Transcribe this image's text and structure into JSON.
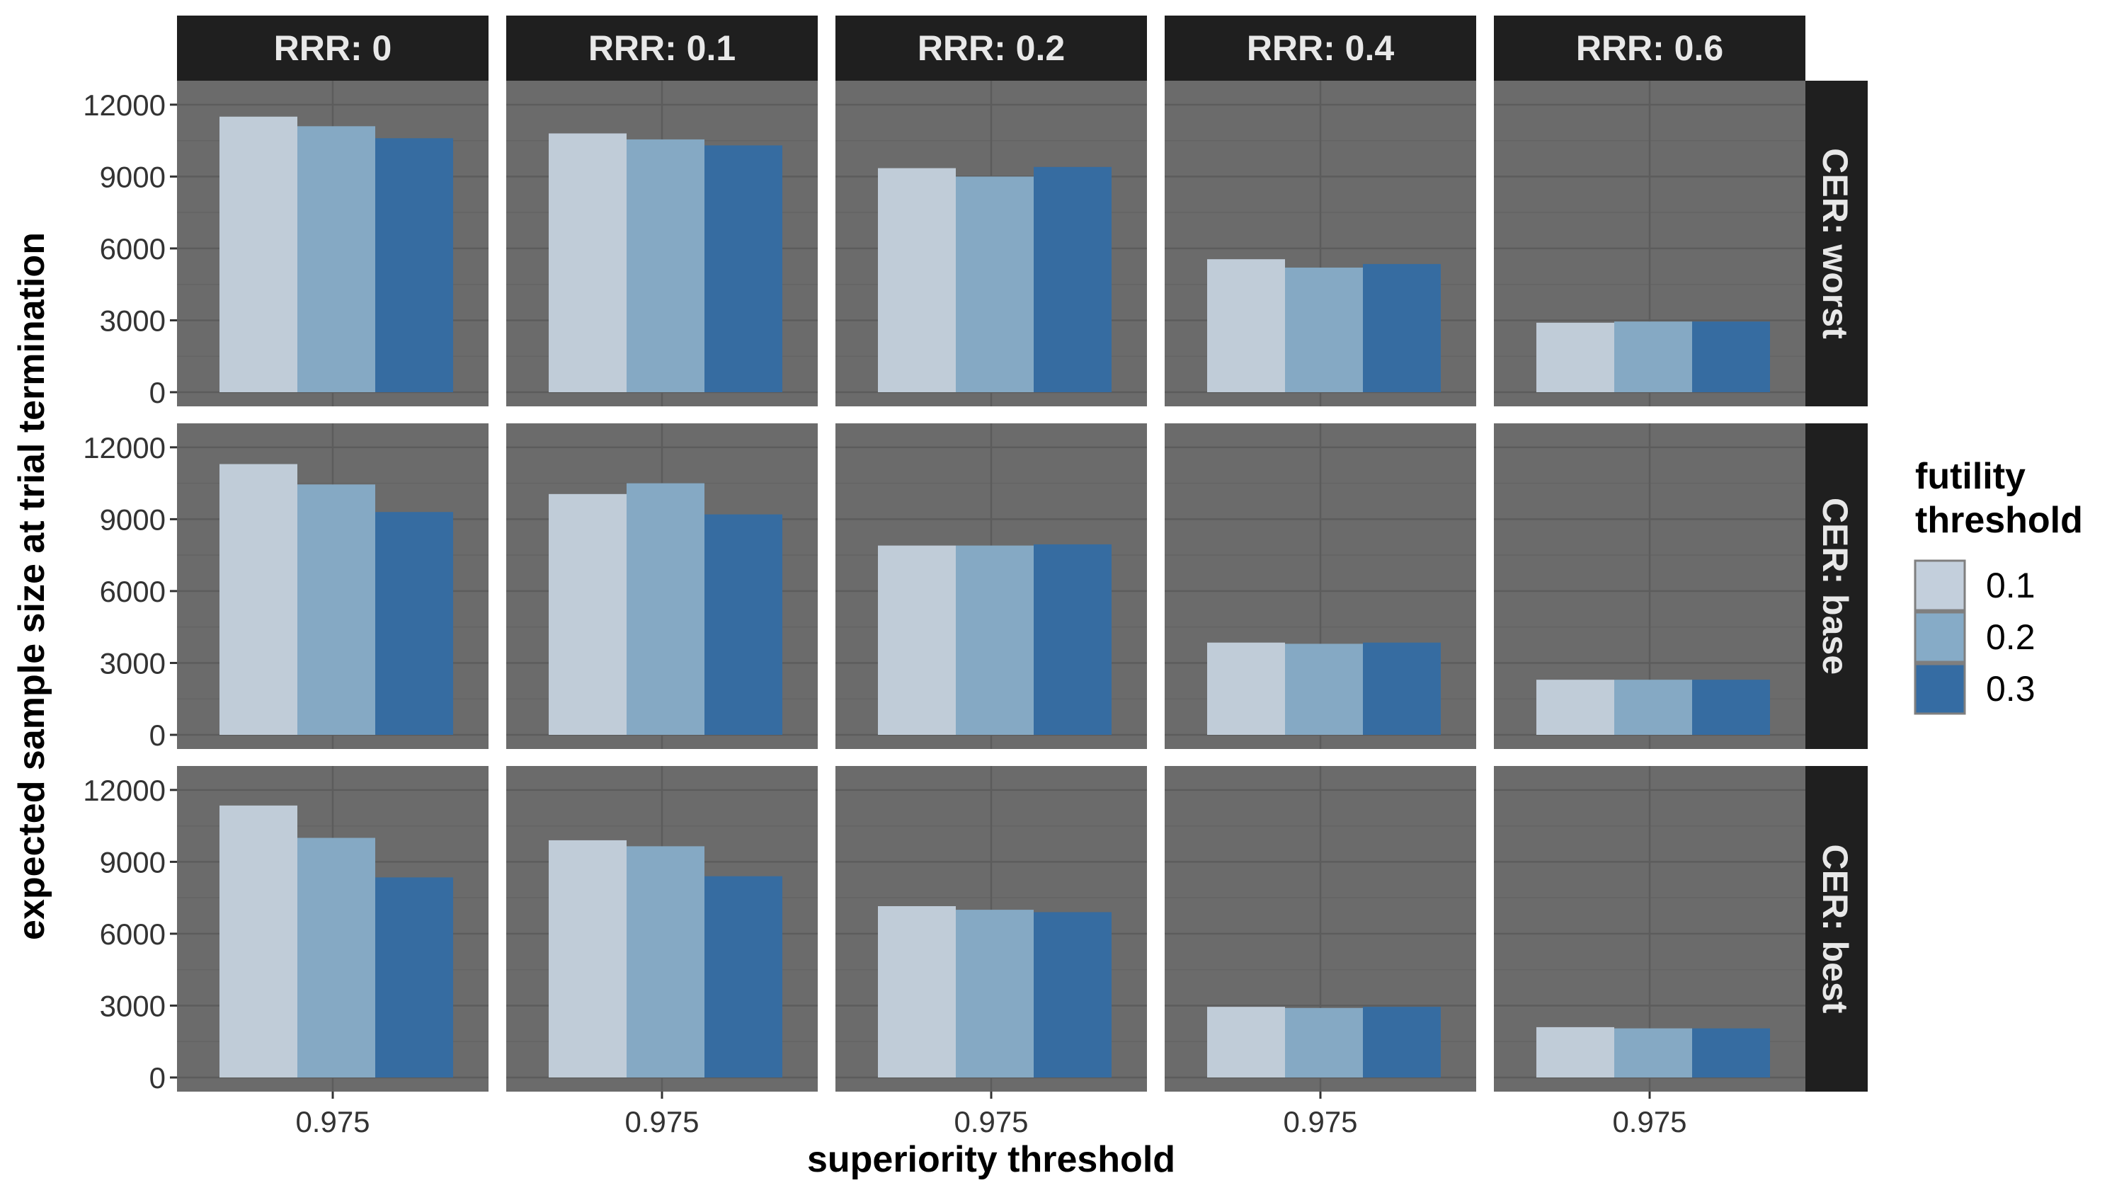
{
  "chart_data": {
    "type": "bar",
    "xlabel": "superiority threshold",
    "ylabel": "expected sample size at trial termination",
    "x_categories": [
      "0.975"
    ],
    "ylim": [
      0,
      13000
    ],
    "yticks": [
      0,
      3000,
      6000,
      9000,
      12000
    ],
    "grid": true,
    "legend": {
      "title_lines": [
        "futility",
        "threshold"
      ],
      "position": "right",
      "entries": [
        {
          "label": "0.1",
          "color": "#c3cfdc"
        },
        {
          "label": "0.2",
          "color": "#86abc7"
        },
        {
          "label": "0.3",
          "color": "#356ca3"
        }
      ]
    },
    "col_facets": [
      "RRR: 0",
      "RRR: 0.1",
      "RRR: 0.2",
      "RRR: 0.4",
      "RRR: 0.6"
    ],
    "row_facets": [
      "CER: worst",
      "CER: base",
      "CER: best"
    ],
    "values": [
      [
        [
          11500,
          11100,
          10600
        ],
        [
          10800,
          10550,
          10300
        ],
        [
          9350,
          9000,
          9400
        ],
        [
          5550,
          5200,
          5350
        ],
        [
          2900,
          2950,
          2950
        ]
      ],
      [
        [
          11300,
          10450,
          9300
        ],
        [
          10050,
          10500,
          9200
        ],
        [
          7900,
          7900,
          7950
        ],
        [
          3850,
          3800,
          3850
        ],
        [
          2300,
          2300,
          2300
        ]
      ],
      [
        [
          11350,
          10000,
          8350
        ],
        [
          9900,
          9650,
          8400
        ],
        [
          7150,
          7000,
          6900
        ],
        [
          2950,
          2900,
          2950
        ],
        [
          2100,
          2050,
          2050
        ]
      ]
    ]
  },
  "colors": {
    "panel_bg": "#6b6b6b",
    "grid_major": "#5c5c5c",
    "grid_minor": "#646464",
    "strip_bg": "#1f1f1f",
    "strip_text": "#e8e8e8",
    "axis_text": "#333333",
    "title_text": "#000000"
  }
}
